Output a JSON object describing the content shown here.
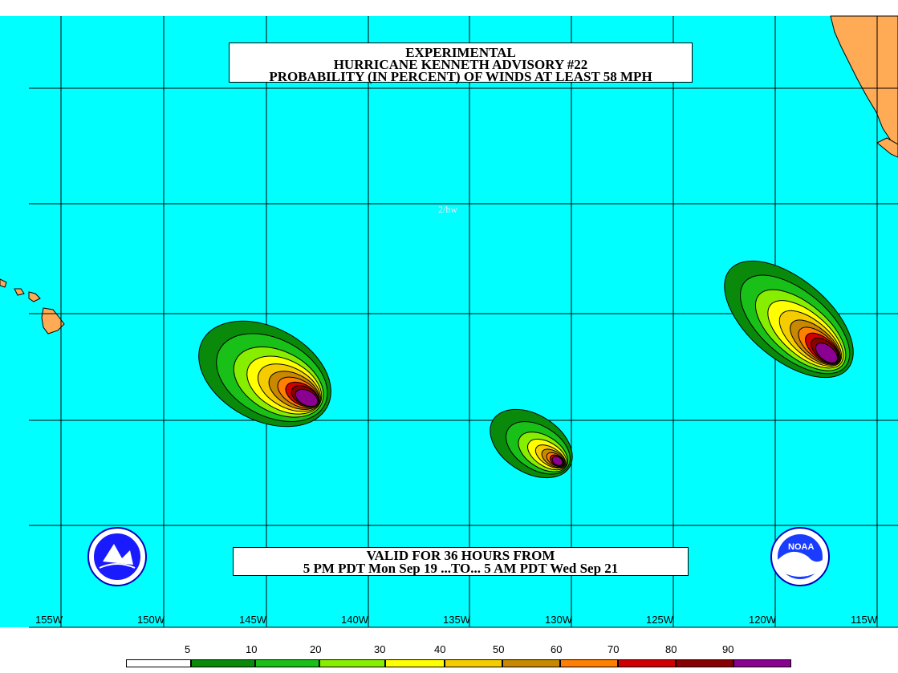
{
  "title": {
    "line1": "EXPERIMENTAL",
    "line2": "HURRICANE KENNETH ADVISORY #22",
    "line3": "PROBABILITY (IN PERCENT) OF WINDS AT LEAST 58 MPH"
  },
  "valid": {
    "line1": "VALID FOR 36 HOURS FROM",
    "line2": "5 PM PDT Mon Sep 19 ...TO... 5 AM PDT Wed Sep 21"
  },
  "watermark": "2/hw",
  "longitude_labels": [
    "155W",
    "150W",
    "145W",
    "140W",
    "135W",
    "130W",
    "125W",
    "120W",
    "115W"
  ],
  "legend": {
    "labels": [
      "5",
      "10",
      "20",
      "30",
      "40",
      "50",
      "60",
      "70",
      "80",
      "90"
    ],
    "colors": [
      "#ffffff",
      "#0a8a0a",
      "#18c018",
      "#88ee00",
      "#ffff00",
      "#f4cc00",
      "#c88800",
      "#ff8000",
      "#d00000",
      "#880000",
      "#8a0090"
    ]
  },
  "colors": {
    "ocean": "#00ffff",
    "land": "#ffaa55",
    "grid": "#000000"
  },
  "logos": {
    "left": "nws-logo",
    "right_text": "NOAA"
  }
}
